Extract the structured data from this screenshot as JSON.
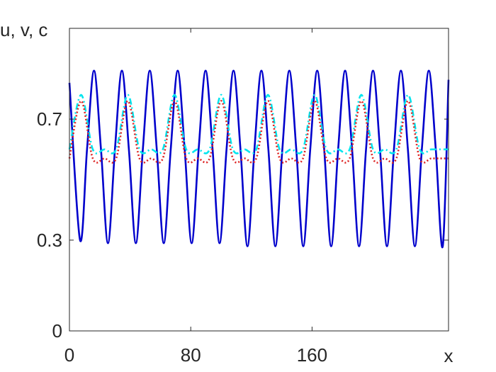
{
  "chart_data": {
    "type": "line",
    "title": "",
    "xlabel": "x",
    "ylabel": "u, v, c",
    "xlim": [
      0,
      250
    ],
    "ylim": [
      0,
      1
    ],
    "xticks": [
      0,
      80,
      160
    ],
    "yticks": [
      0,
      0.3,
      0.7
    ],
    "grid": false,
    "legend": "none",
    "series": [
      {
        "color": "#0000cc",
        "style": "solid",
        "x": [
          0,
          7,
          11.6,
          16.2,
          20.8,
          25.4,
          30,
          34.6,
          39.2,
          43.8,
          48.4,
          53,
          57.6,
          62.2,
          66.8,
          71.4,
          76,
          80.6,
          85.2,
          89.8,
          94.4,
          99,
          103.6,
          108.2,
          112.8,
          117.4,
          122,
          126.6,
          131.2,
          135.8,
          140.4,
          145,
          149.6,
          154.2,
          158.8,
          163.4,
          168,
          172.6,
          177.2,
          181.8,
          186.4,
          191,
          195.6,
          200.2,
          204.8,
          209.4,
          214,
          218.6,
          223.2,
          227.8,
          232.4,
          237,
          241.6,
          246.2,
          250
        ],
        "y": [
          0.82,
          0.3,
          0.6,
          0.86,
          0.6,
          0.29,
          0.6,
          0.86,
          0.6,
          0.29,
          0.6,
          0.86,
          0.6,
          0.29,
          0.6,
          0.86,
          0.6,
          0.29,
          0.6,
          0.86,
          0.6,
          0.29,
          0.6,
          0.86,
          0.6,
          0.28,
          0.6,
          0.86,
          0.6,
          0.28,
          0.6,
          0.86,
          0.6,
          0.28,
          0.6,
          0.86,
          0.6,
          0.28,
          0.6,
          0.86,
          0.6,
          0.28,
          0.6,
          0.86,
          0.6,
          0.28,
          0.6,
          0.86,
          0.6,
          0.28,
          0.6,
          0.86,
          0.6,
          0.28,
          0.83
        ]
      },
      {
        "color": "#00e5ee",
        "style": "dashdot",
        "x": [
          0,
          7.7,
          15.4,
          23.1,
          30.8,
          38.5,
          46.2,
          53.9,
          61.6,
          69.3,
          77,
          84.7,
          92.4,
          100.1,
          107.8,
          115.5,
          123.2,
          130.9,
          138.6,
          146.3,
          154,
          161.7,
          169.4,
          177.1,
          184.8,
          192.5,
          200.2,
          207.9,
          215.6,
          223.3,
          231,
          238.7,
          246.4,
          250
        ],
        "y": [
          0.6,
          0.78,
          0.6,
          0.6,
          0.6,
          0.78,
          0.6,
          0.6,
          0.6,
          0.78,
          0.6,
          0.6,
          0.6,
          0.78,
          0.6,
          0.6,
          0.6,
          0.78,
          0.6,
          0.6,
          0.6,
          0.78,
          0.6,
          0.6,
          0.6,
          0.78,
          0.6,
          0.6,
          0.6,
          0.78,
          0.6,
          0.6,
          0.6,
          0.6
        ]
      },
      {
        "color": "#dd2222",
        "style": "dotted",
        "x": [
          0,
          7.7,
          15.4,
          23.1,
          30.8,
          38.5,
          46.2,
          53.9,
          61.6,
          69.3,
          77,
          84.7,
          92.4,
          100.1,
          107.8,
          115.5,
          123.2,
          130.9,
          138.6,
          146.3,
          154,
          161.7,
          169.4,
          177.1,
          184.8,
          192.5,
          200.2,
          207.9,
          215.6,
          223.3,
          231,
          238.7,
          246.4,
          250
        ],
        "y": [
          0.57,
          0.76,
          0.57,
          0.57,
          0.57,
          0.76,
          0.57,
          0.57,
          0.57,
          0.76,
          0.57,
          0.57,
          0.57,
          0.76,
          0.57,
          0.57,
          0.57,
          0.76,
          0.57,
          0.57,
          0.57,
          0.76,
          0.57,
          0.57,
          0.57,
          0.76,
          0.57,
          0.57,
          0.57,
          0.76,
          0.57,
          0.57,
          0.57,
          0.57
        ]
      }
    ]
  }
}
